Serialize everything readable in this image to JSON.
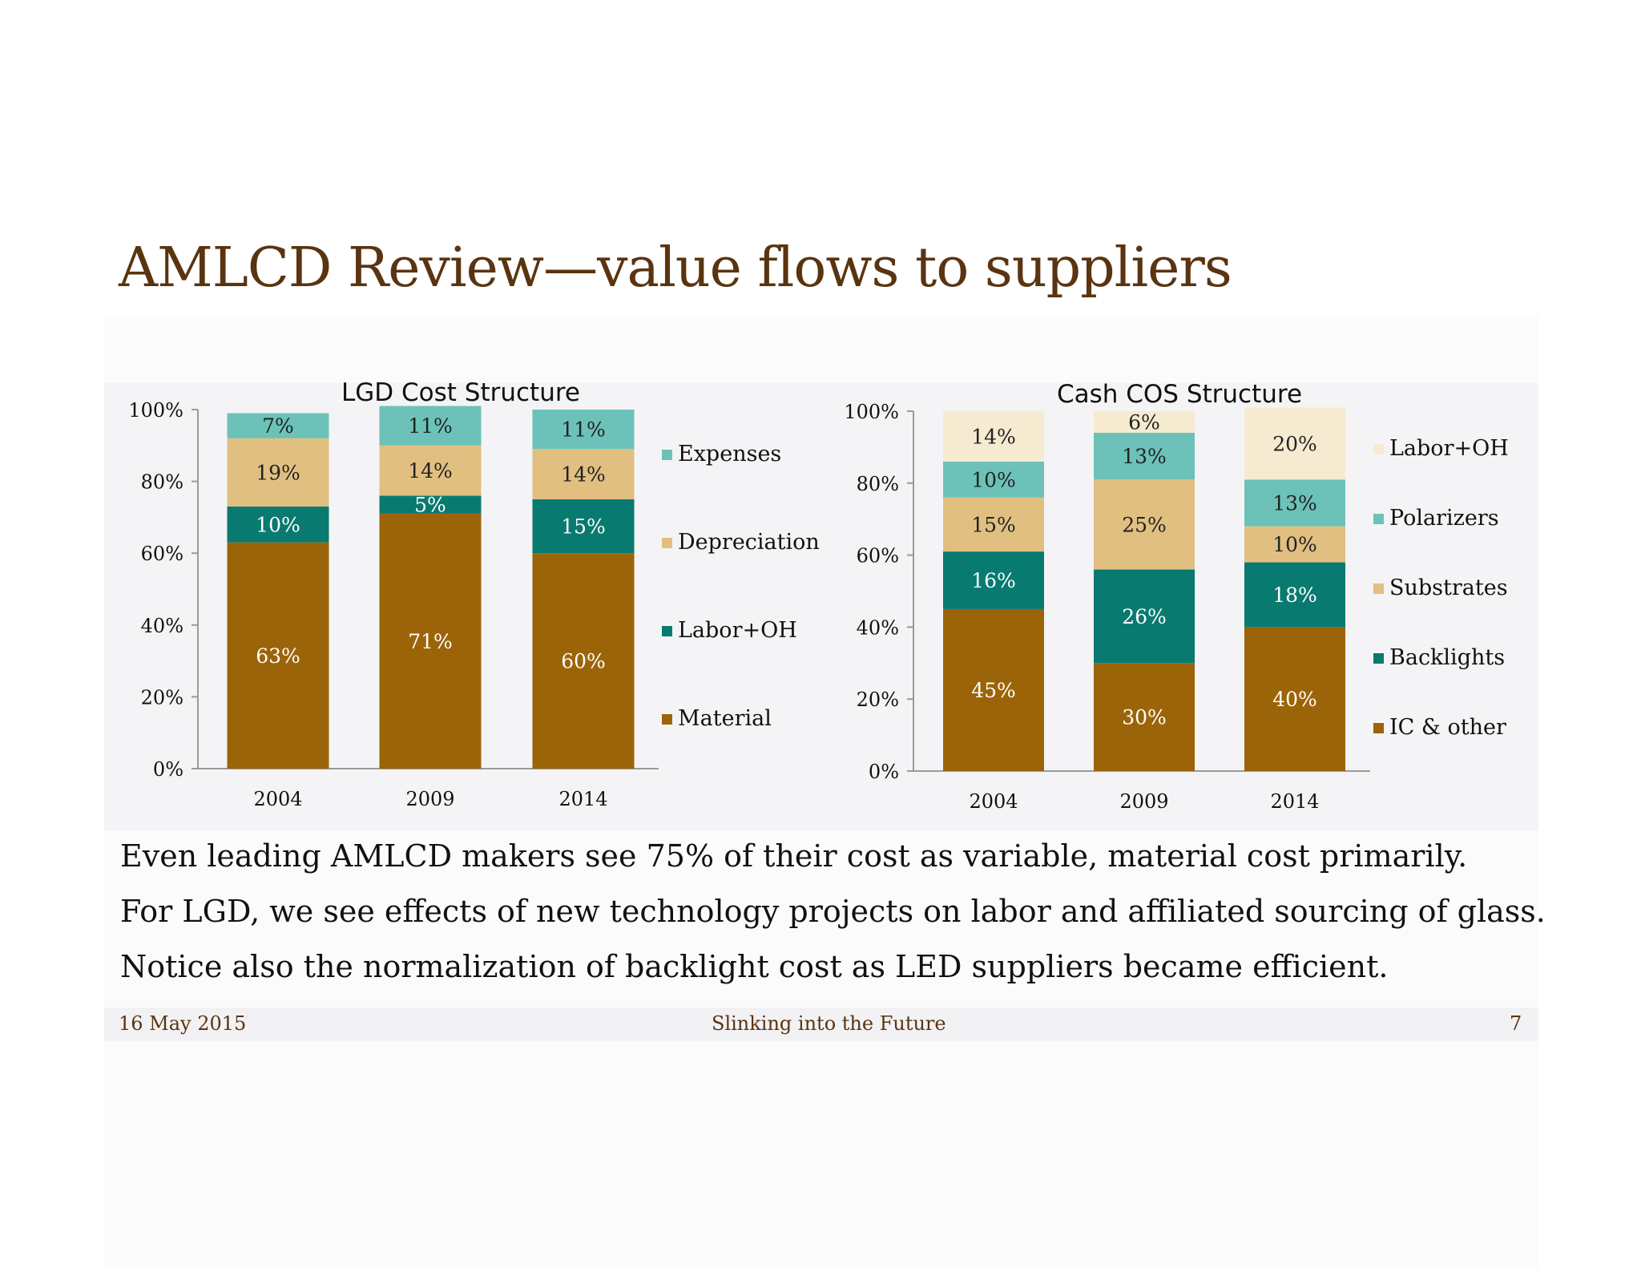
{
  "title": "AMLCD Review—value flows to suppliers",
  "captions": [
    "Even leading AMLCD makers see 75% of their cost as variable, material cost primarily.",
    "For LGD, we see effects of new technology projects on labor and affiliated sourcing of glass.",
    "Notice also the normalization of backlight cost as LED suppliers became efficient."
  ],
  "footer": {
    "date": "16 May 2015",
    "center": "Slinking into the Future",
    "page": "7"
  },
  "chart_data": [
    {
      "type": "bar",
      "stacked": true,
      "percent": true,
      "title": "LGD Cost Structure",
      "categories": [
        "2004",
        "2009",
        "2014"
      ],
      "yticks": [
        "0%",
        "20%",
        "40%",
        "60%",
        "80%",
        "100%"
      ],
      "ylim": [
        0,
        100
      ],
      "legend_position": "right",
      "series": [
        {
          "name": "Material",
          "values": [
            63,
            71,
            60
          ],
          "labels": [
            "63%",
            "71%",
            "60%"
          ],
          "color": "#9c6409",
          "text_color": "#ffffff"
        },
        {
          "name": "Labor+OH",
          "values": [
            10,
            5,
            15
          ],
          "labels": [
            "10%",
            "5%",
            "15%"
          ],
          "color": "#097a70",
          "text_color": "#ffffff"
        },
        {
          "name": "Depreciation",
          "values": [
            19,
            14,
            14
          ],
          "labels": [
            "19%",
            "14%",
            "14%"
          ],
          "color": "#e1bf80",
          "text_color": "#222222"
        },
        {
          "name": "Expenses",
          "values": [
            7,
            11,
            11
          ],
          "labels": [
            "7%",
            "11%",
            "11%"
          ],
          "color": "#6cc2b9",
          "text_color": "#222222"
        }
      ]
    },
    {
      "type": "bar",
      "stacked": true,
      "percent": true,
      "title": "Cash COS Structure",
      "categories": [
        "2004",
        "2009",
        "2014"
      ],
      "yticks": [
        "0%",
        "20%",
        "40%",
        "60%",
        "80%",
        "100%"
      ],
      "ylim": [
        0,
        100
      ],
      "legend_position": "right",
      "series": [
        {
          "name": "IC & other",
          "values": [
            45,
            30,
            40
          ],
          "labels": [
            "45%",
            "30%",
            "40%"
          ],
          "color": "#9c6409",
          "text_color": "#ffffff"
        },
        {
          "name": "Backlights",
          "values": [
            16,
            26,
            18
          ],
          "labels": [
            "16%",
            "26%",
            "18%"
          ],
          "color": "#097a70",
          "text_color": "#ffffff"
        },
        {
          "name": "Substrates",
          "values": [
            15,
            25,
            10
          ],
          "labels": [
            "15%",
            "25%",
            "10%"
          ],
          "color": "#e1bf80",
          "text_color": "#222222"
        },
        {
          "name": "Polarizers",
          "values": [
            10,
            13,
            13
          ],
          "labels": [
            "10%",
            "13%",
            "13%"
          ],
          "color": "#6cc2b9",
          "text_color": "#222222"
        },
        {
          "name": "Labor+OH",
          "values": [
            14,
            6,
            20
          ],
          "labels": [
            "14%",
            "6%",
            "20%"
          ],
          "color": "#f6ebd0",
          "text_color": "#222222"
        }
      ]
    }
  ]
}
